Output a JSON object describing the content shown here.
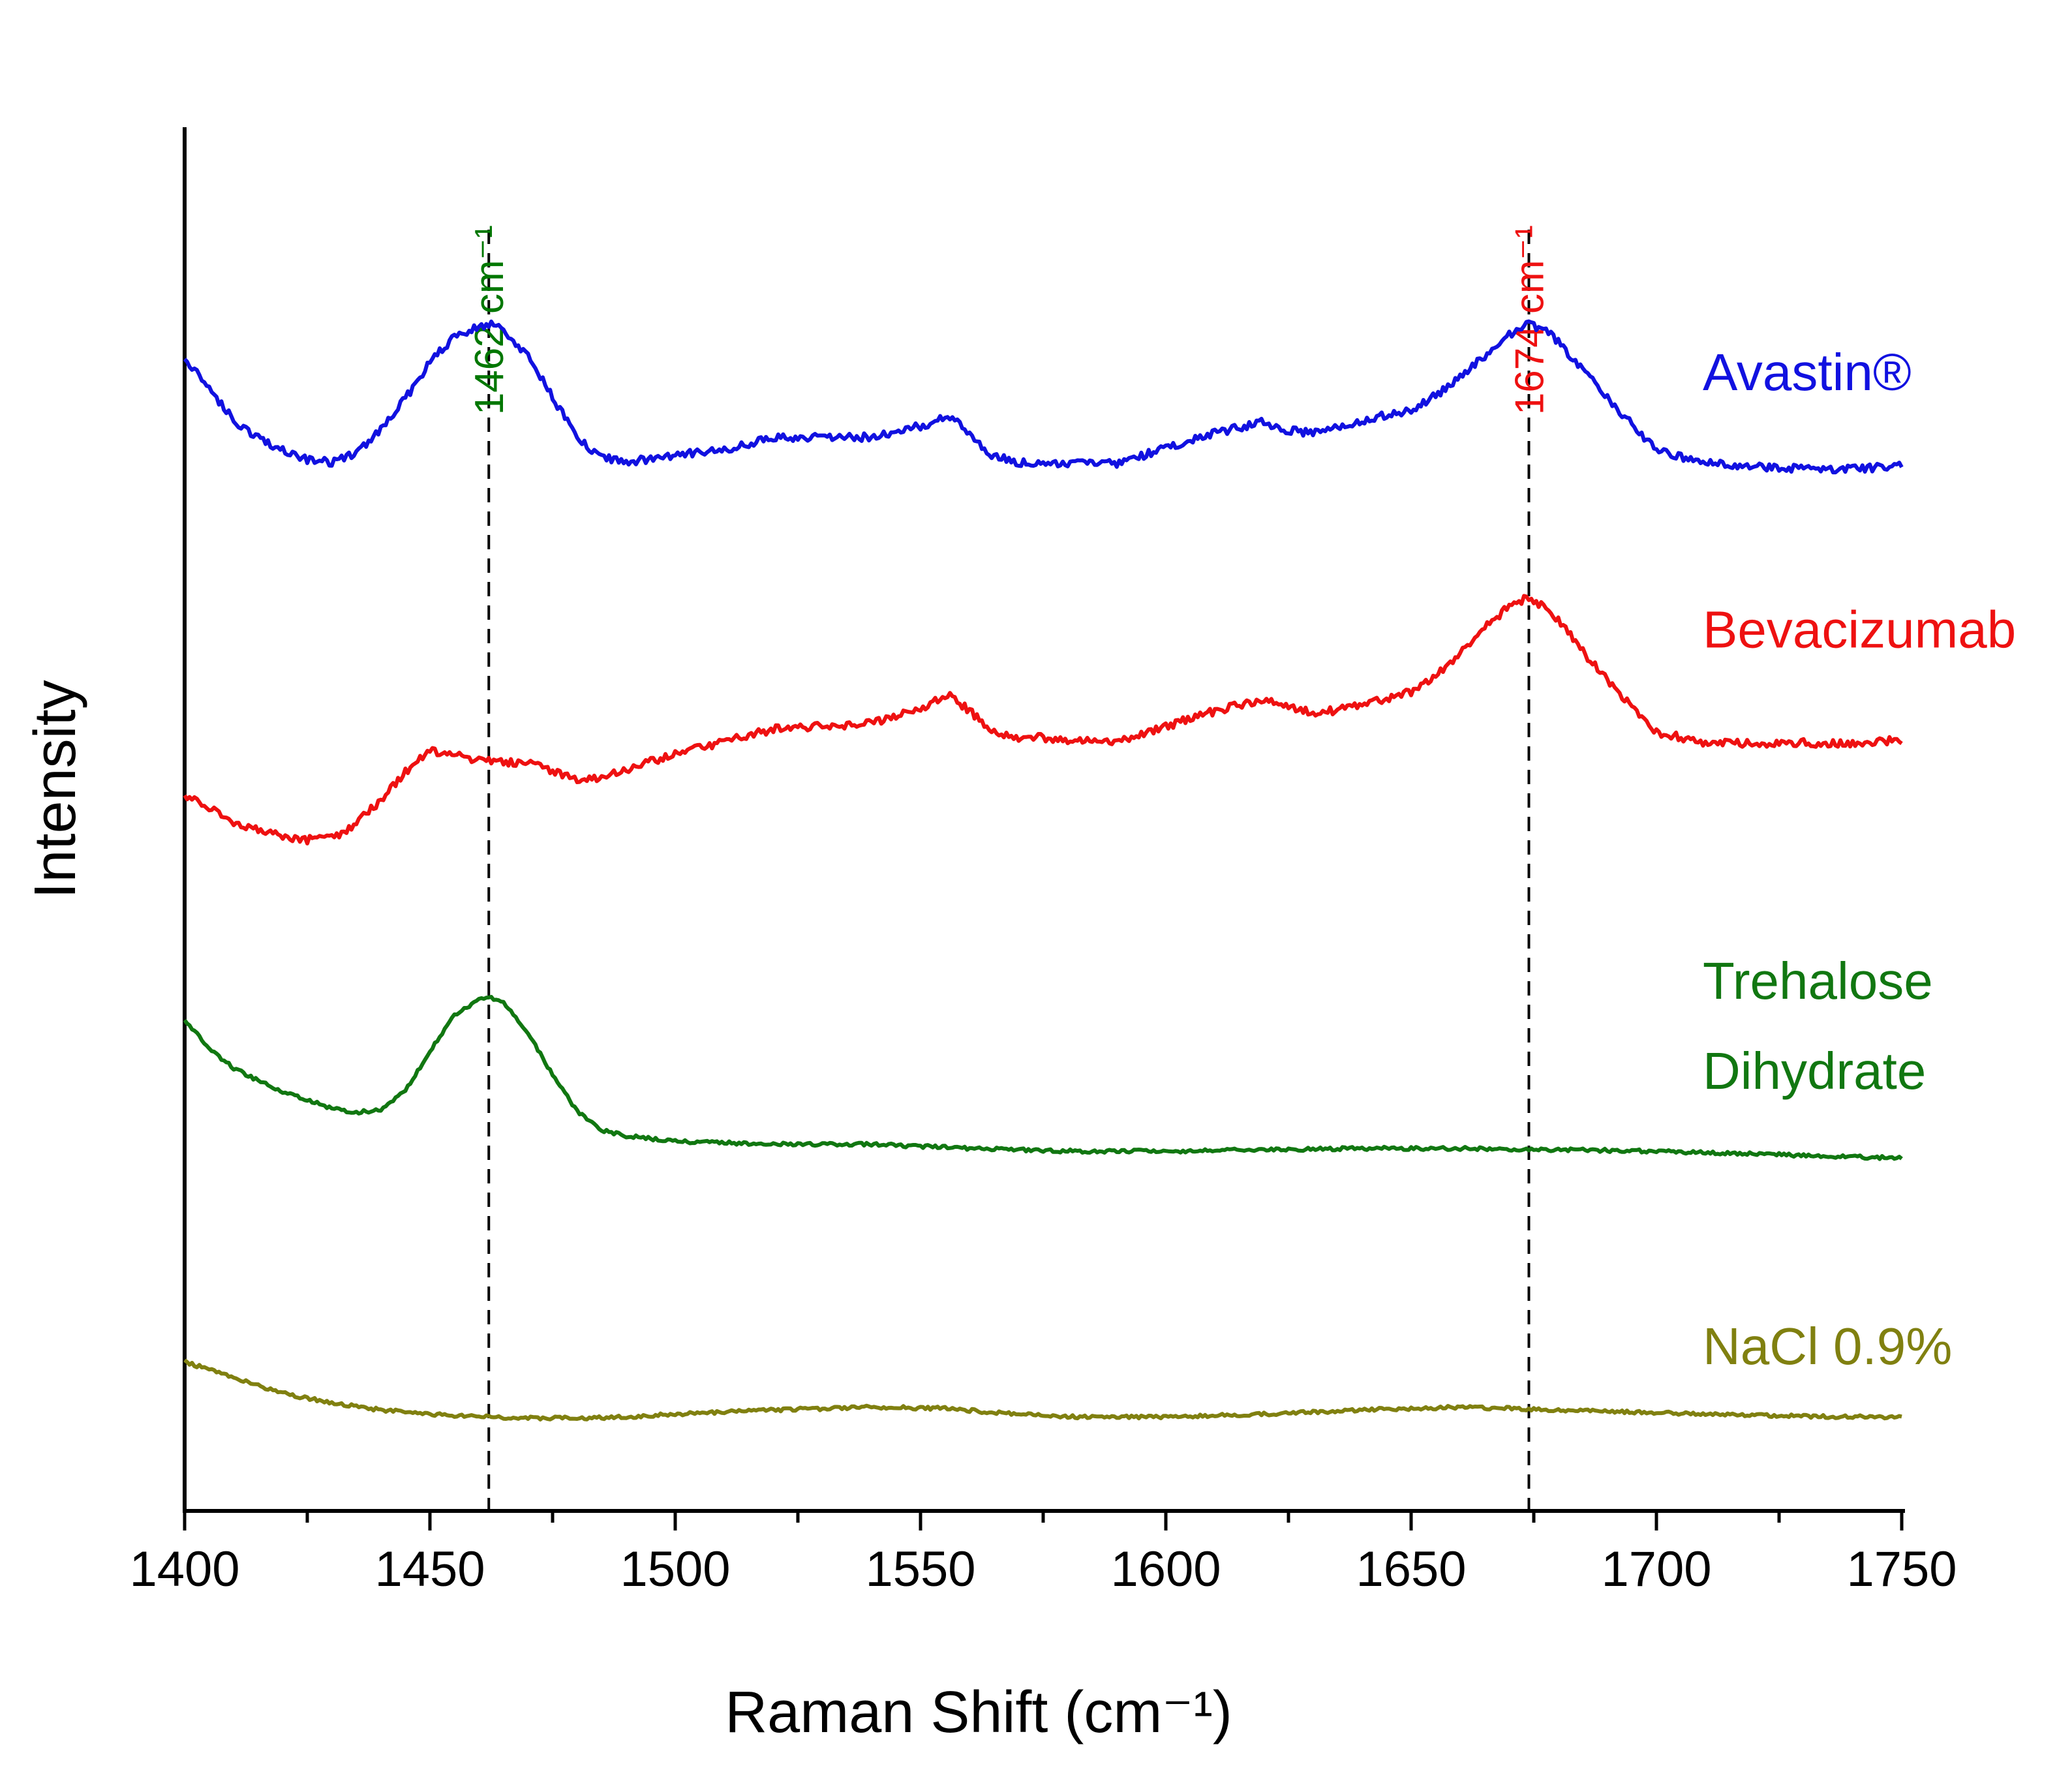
{
  "chart_data": {
    "type": "line",
    "title": "",
    "xlabel": "Raman Shift (cm⁻¹)",
    "ylabel": "Intensity",
    "xlim": [
      1400,
      1750
    ],
    "ylim": [
      0,
      1
    ],
    "x_ticks": [
      1400,
      1450,
      1500,
      1550,
      1600,
      1650,
      1700,
      1750
    ],
    "x_tick_labels": [
      "1400",
      "1450",
      "1500",
      "1550",
      "1600",
      "1650",
      "1700",
      "1750"
    ],
    "y_ticks_shown": false,
    "grid": false,
    "annotations": [
      {
        "x": 1462,
        "label": "1462 cm⁻¹",
        "color": "#007700"
      },
      {
        "x": 1674,
        "label": "1674 cm⁻¹",
        "color": "#ee1111"
      }
    ],
    "series": [
      {
        "name": "Avastin®",
        "label_lines": [
          "Avastin®"
        ],
        "color": "#1111e0",
        "x": [
          1400,
          1405,
          1410,
          1415,
          1420,
          1425,
          1430,
          1435,
          1440,
          1445,
          1450,
          1455,
          1460,
          1462,
          1465,
          1470,
          1475,
          1480,
          1485,
          1490,
          1500,
          1510,
          1520,
          1530,
          1540,
          1550,
          1556,
          1560,
          1565,
          1570,
          1575,
          1580,
          1590,
          1600,
          1610,
          1620,
          1625,
          1630,
          1640,
          1650,
          1655,
          1660,
          1665,
          1670,
          1674,
          1678,
          1682,
          1686,
          1690,
          1695,
          1700,
          1710,
          1720,
          1730,
          1740,
          1750
        ],
        "values": [
          0.833,
          0.811,
          0.788,
          0.775,
          0.767,
          0.76,
          0.758,
          0.765,
          0.781,
          0.804,
          0.83,
          0.849,
          0.856,
          0.858,
          0.853,
          0.834,
          0.805,
          0.775,
          0.762,
          0.758,
          0.763,
          0.767,
          0.776,
          0.776,
          0.776,
          0.784,
          0.791,
          0.778,
          0.762,
          0.758,
          0.757,
          0.757,
          0.757,
          0.768,
          0.779,
          0.787,
          0.781,
          0.779,
          0.788,
          0.796,
          0.806,
          0.82,
          0.835,
          0.85,
          0.858,
          0.852,
          0.837,
          0.821,
          0.805,
          0.785,
          0.766,
          0.757,
          0.755,
          0.753,
          0.753,
          0.755
        ]
      },
      {
        "name": "Bevacizumab",
        "label_lines": [
          "Bevacizumab"
        ],
        "color": "#ee1111",
        "x": [
          1400,
          1405,
          1410,
          1415,
          1420,
          1425,
          1430,
          1435,
          1440,
          1445,
          1450,
          1455,
          1460,
          1465,
          1470,
          1475,
          1480,
          1485,
          1490,
          1500,
          1510,
          1520,
          1530,
          1540,
          1550,
          1556,
          1560,
          1565,
          1570,
          1575,
          1580,
          1590,
          1600,
          1610,
          1620,
          1625,
          1630,
          1640,
          1650,
          1655,
          1660,
          1665,
          1670,
          1674,
          1678,
          1682,
          1686,
          1690,
          1695,
          1700,
          1710,
          1720,
          1730,
          1740,
          1750
        ],
        "values": [
          0.518,
          0.508,
          0.498,
          0.492,
          0.487,
          0.485,
          0.486,
          0.497,
          0.514,
          0.534,
          0.549,
          0.547,
          0.542,
          0.541,
          0.541,
          0.534,
          0.528,
          0.53,
          0.536,
          0.547,
          0.556,
          0.565,
          0.567,
          0.569,
          0.58,
          0.59,
          0.578,
          0.562,
          0.558,
          0.559,
          0.556,
          0.556,
          0.567,
          0.578,
          0.587,
          0.582,
          0.576,
          0.582,
          0.592,
          0.604,
          0.62,
          0.638,
          0.654,
          0.66,
          0.652,
          0.636,
          0.617,
          0.6,
          0.582,
          0.563,
          0.555,
          0.555,
          0.555,
          0.555,
          0.557
        ]
      },
      {
        "name": "Trehalose Dihydrate",
        "label_lines": [
          "Trehalose",
          "Dihydrate"
        ],
        "color": "#117711",
        "x": [
          1400,
          1405,
          1410,
          1415,
          1420,
          1425,
          1430,
          1435,
          1440,
          1445,
          1450,
          1455,
          1460,
          1462,
          1465,
          1470,
          1475,
          1480,
          1485,
          1490,
          1500,
          1520,
          1540,
          1560,
          1580,
          1600,
          1620,
          1640,
          1660,
          1680,
          1700,
          1720,
          1740,
          1750
        ],
        "values": [
          0.355,
          0.334,
          0.32,
          0.311,
          0.303,
          0.297,
          0.291,
          0.288,
          0.29,
          0.304,
          0.332,
          0.358,
          0.37,
          0.372,
          0.367,
          0.346,
          0.315,
          0.289,
          0.275,
          0.271,
          0.267,
          0.265,
          0.265,
          0.262,
          0.26,
          0.26,
          0.261,
          0.262,
          0.262,
          0.261,
          0.26,
          0.258,
          0.256,
          0.255
        ]
      },
      {
        "name": "NaCl 0.9%",
        "label_lines": [
          "NaCl 0.9%"
        ],
        "color": "#808010",
        "x": [
          1400,
          1410,
          1420,
          1430,
          1440,
          1450,
          1460,
          1470,
          1480,
          1490,
          1500,
          1520,
          1540,
          1556,
          1565,
          1580,
          1600,
          1620,
          1640,
          1660,
          1680,
          1700,
          1720,
          1740,
          1750
        ],
        "values": [
          0.108,
          0.096,
          0.085,
          0.078,
          0.073,
          0.07,
          0.068,
          0.067,
          0.067,
          0.068,
          0.07,
          0.073,
          0.075,
          0.074,
          0.071,
          0.068,
          0.068,
          0.07,
          0.073,
          0.075,
          0.073,
          0.071,
          0.069,
          0.068,
          0.068
        ]
      }
    ]
  }
}
